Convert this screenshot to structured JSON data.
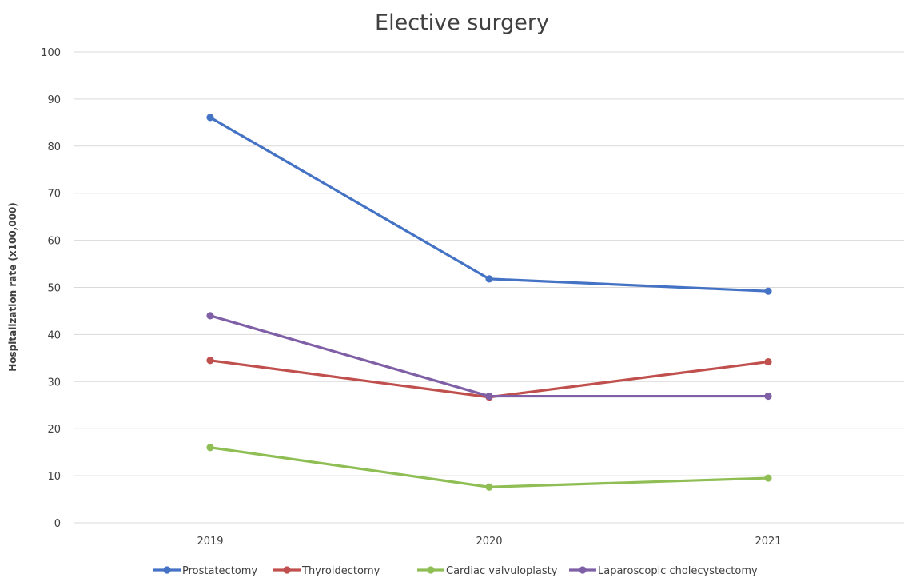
{
  "chart_data": {
    "type": "line",
    "title": "Elective surgery",
    "xlabel": "",
    "ylabel": "Hospitalization rate (x100,000)",
    "categories": [
      "2019",
      "2020",
      "2021"
    ],
    "ylim": [
      0,
      100
    ],
    "yticks": [
      0,
      10,
      20,
      30,
      40,
      50,
      60,
      70,
      80,
      90,
      100
    ],
    "grid": true,
    "legend_position": "bottom",
    "series": [
      {
        "name": "Prostatectomy",
        "color": "#4472c4",
        "values": [
          86.1,
          51.8,
          49.2
        ]
      },
      {
        "name": "Thyroidectomy",
        "color": "#c0504d",
        "values": [
          34.5,
          26.7,
          34.2
        ]
      },
      {
        "name": "Cardiac valvuloplasty",
        "color": "#8fbe54",
        "values": [
          16.0,
          7.6,
          9.5
        ]
      },
      {
        "name": "Laparoscopic cholecystectomy",
        "color": "#7f5fa6",
        "values": [
          44.0,
          26.9,
          26.9
        ]
      }
    ]
  }
}
